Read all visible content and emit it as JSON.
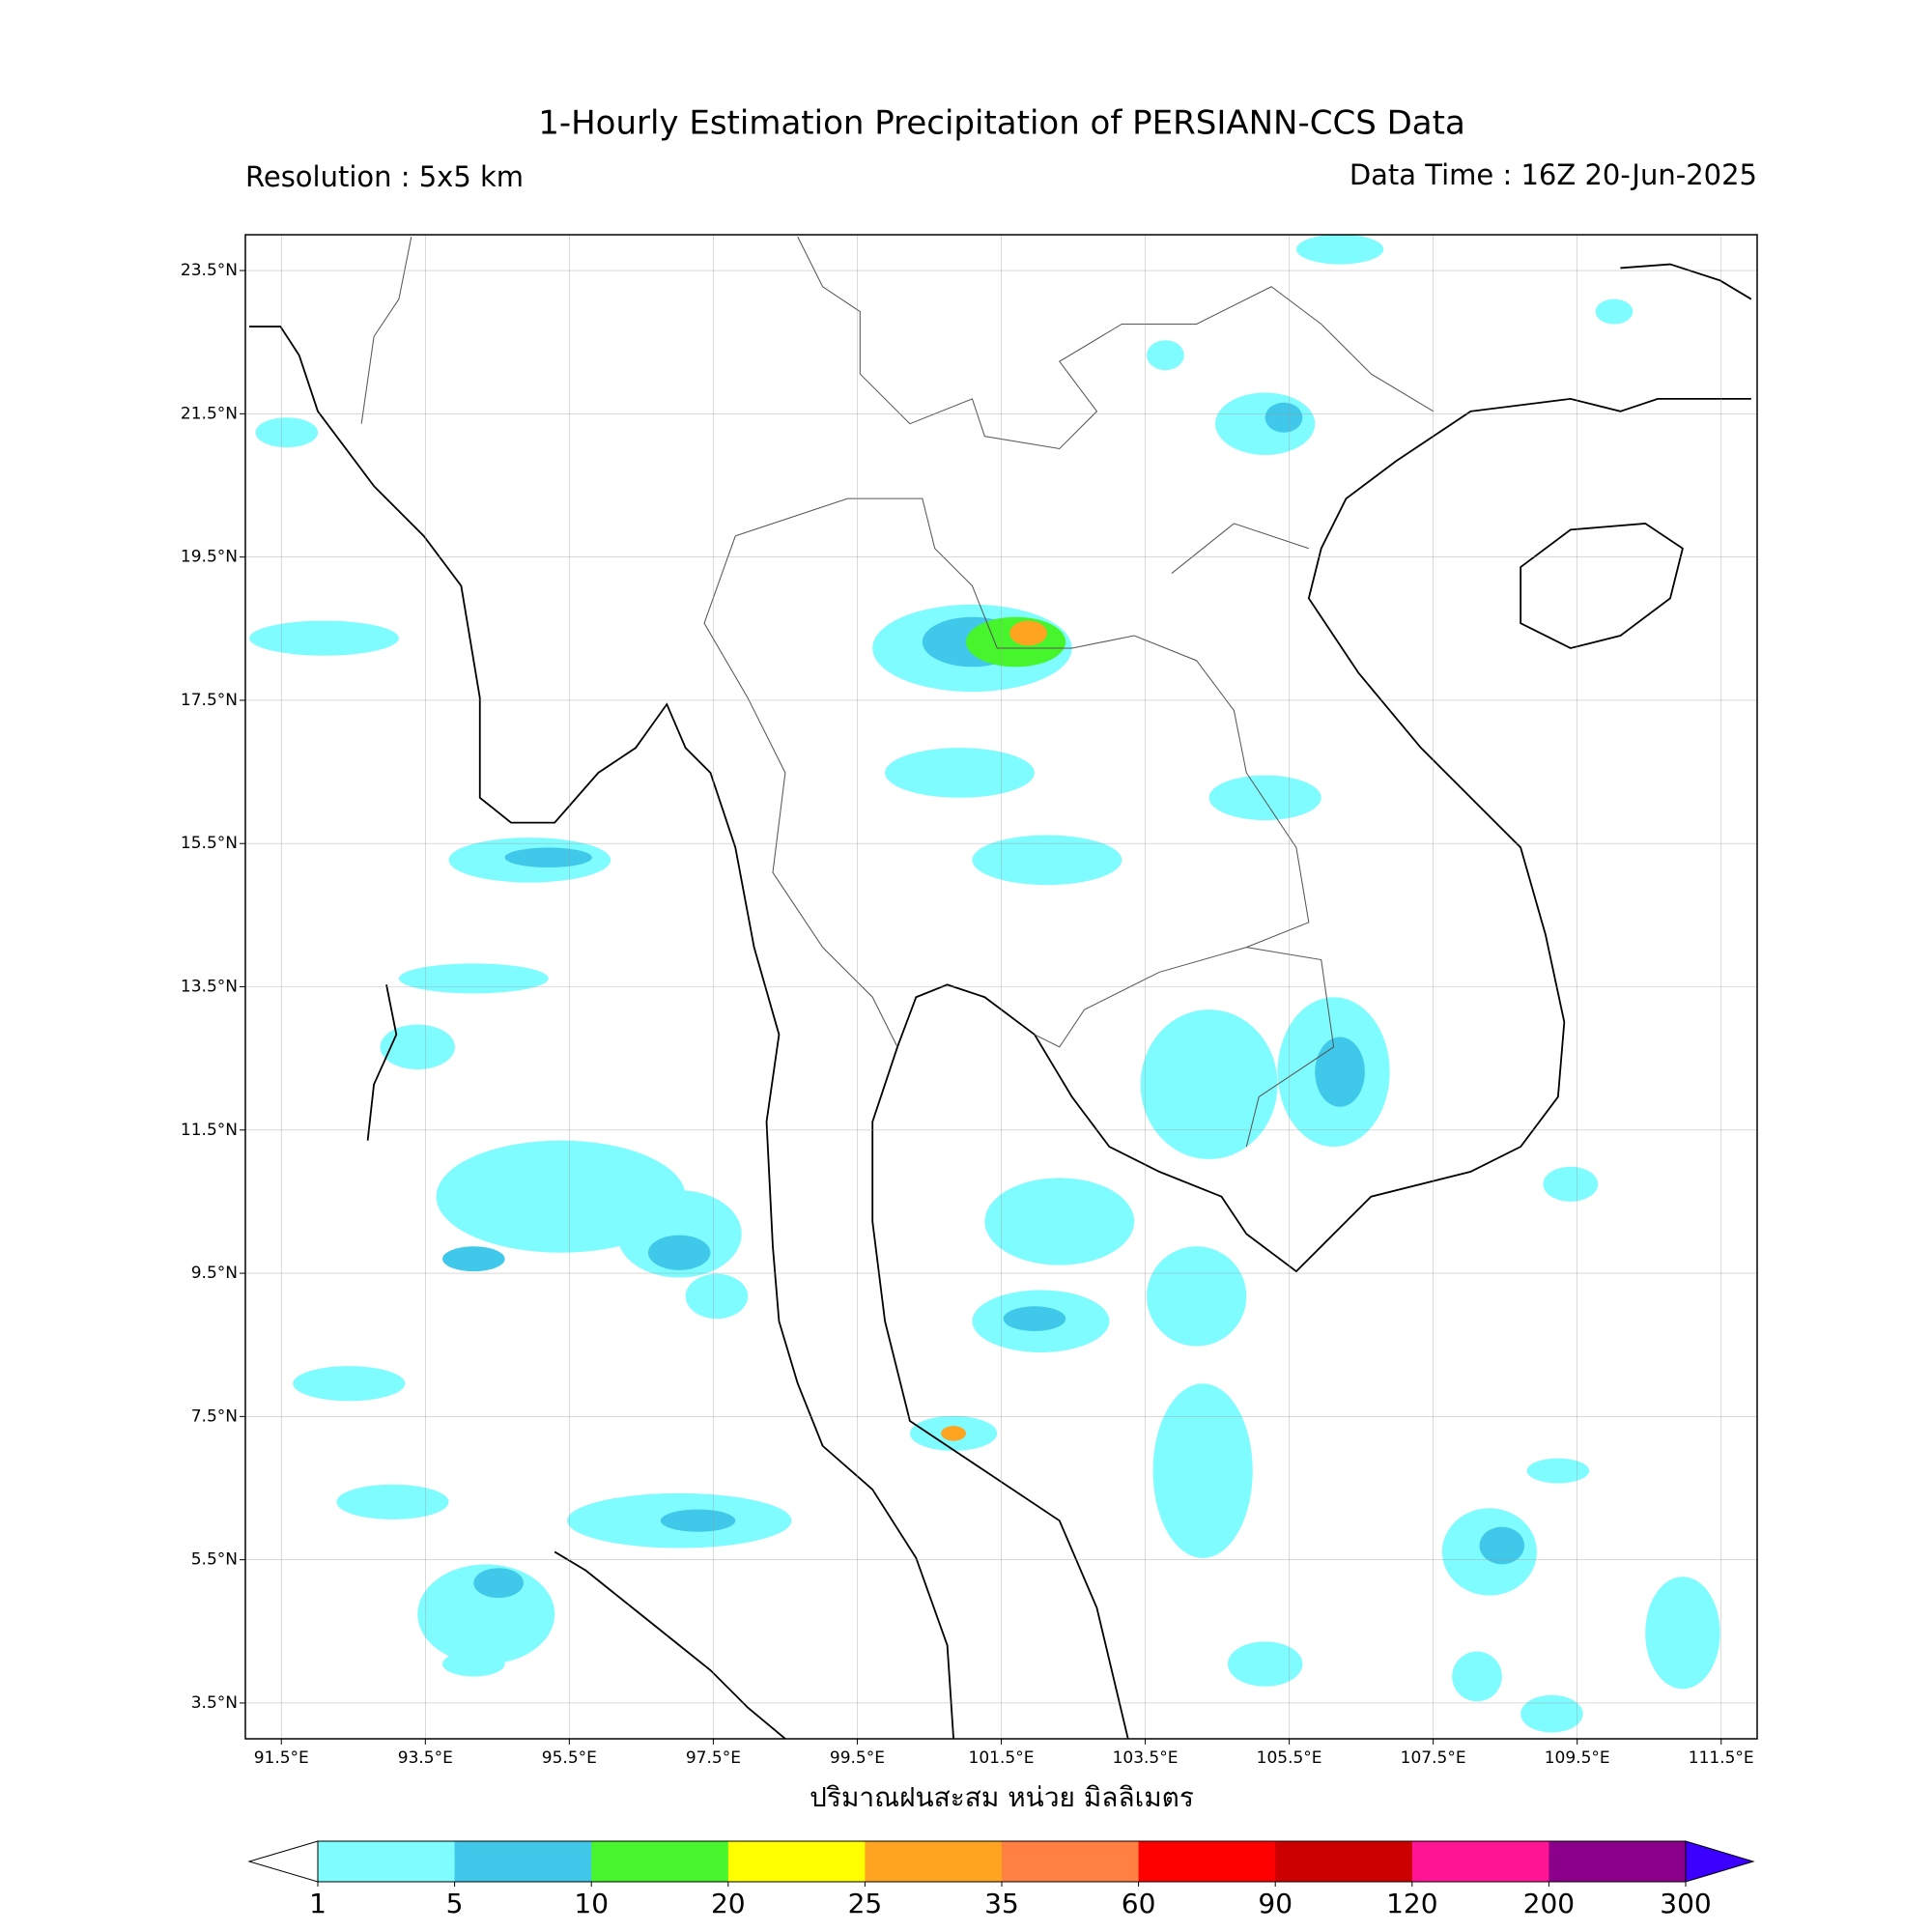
{
  "header": {
    "title": "1-Hourly Estimation Precipitation of PERSIANN-CCS Data",
    "resolution": "Resolution : 5x5 km",
    "data_time": "Data Time : 16Z 20-Jun-2025"
  },
  "map": {
    "xlim": [
      91,
      112
    ],
    "ylim": [
      3,
      24
    ],
    "grid": true,
    "xticks": [
      {
        "value": 91.5,
        "label": "91.5°E"
      },
      {
        "value": 93.5,
        "label": "93.5°E"
      },
      {
        "value": 95.5,
        "label": "95.5°E"
      },
      {
        "value": 97.5,
        "label": "97.5°E"
      },
      {
        "value": 99.5,
        "label": "99.5°E"
      },
      {
        "value": 101.5,
        "label": "101.5°E"
      },
      {
        "value": 103.5,
        "label": "103.5°E"
      },
      {
        "value": 105.5,
        "label": "105.5°E"
      },
      {
        "value": 107.5,
        "label": "107.5°E"
      },
      {
        "value": 109.5,
        "label": "109.5°E"
      },
      {
        "value": 111.5,
        "label": "111.5°E"
      }
    ],
    "yticks": [
      {
        "value": 23.5,
        "label": "23.5°N"
      },
      {
        "value": 21.5,
        "label": "21.5°N"
      },
      {
        "value": 19.5,
        "label": "19.5°N"
      },
      {
        "value": 17.5,
        "label": "17.5°N"
      },
      {
        "value": 15.5,
        "label": "15.5°N"
      },
      {
        "value": 13.5,
        "label": "13.5°N"
      },
      {
        "value": 11.5,
        "label": "11.5°N"
      },
      {
        "value": 9.5,
        "label": "9.5°N"
      },
      {
        "value": 7.5,
        "label": "7.5°N"
      },
      {
        "value": 5.5,
        "label": "5.5°N"
      },
      {
        "value": 3.5,
        "label": "3.5°N"
      }
    ],
    "xlabel": "ปริมาณฝนสะสม หน่วย มิลลิเมตร"
  },
  "colorbar": {
    "ticks": [
      1,
      5,
      10,
      20,
      25,
      35,
      60,
      90,
      120,
      200,
      300
    ],
    "colors": [
      "#7ffcff",
      "#40c8ea",
      "#46f52c",
      "#ffff00",
      "#fea421",
      "#ff8040",
      "#ff0000",
      "#cc0000",
      "#ff1493",
      "#8b008b"
    ],
    "under_color": "#ffffff",
    "over_color": "#3b00ff"
  }
}
